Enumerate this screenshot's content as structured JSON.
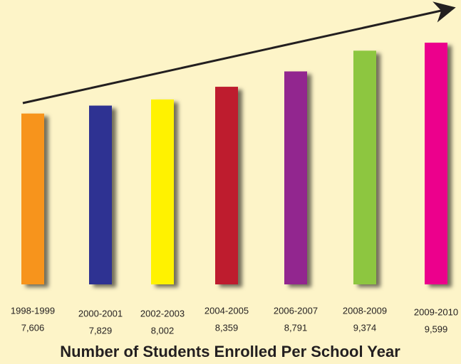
{
  "chart_data": {
    "type": "bar",
    "title": "Number of Students Enrolled Per School Year",
    "categories": [
      "1998-1999",
      "2000-2001",
      "2002-2003",
      "2004-2005",
      "2006-2007",
      "2008-2009",
      "2009-2010"
    ],
    "values": [
      7606,
      7829,
      8002,
      8359,
      8791,
      9374,
      9599
    ],
    "value_labels": [
      "7,606",
      "7,829",
      "8,002",
      "8,359",
      "8,791",
      "9,374",
      "9,599"
    ],
    "colors": [
      "#f7941d",
      "#2e3192",
      "#fff200",
      "#be1e2d",
      "#92278f",
      "#8dc63f",
      "#ec008c"
    ],
    "ylim": [
      2800,
      10000
    ]
  }
}
